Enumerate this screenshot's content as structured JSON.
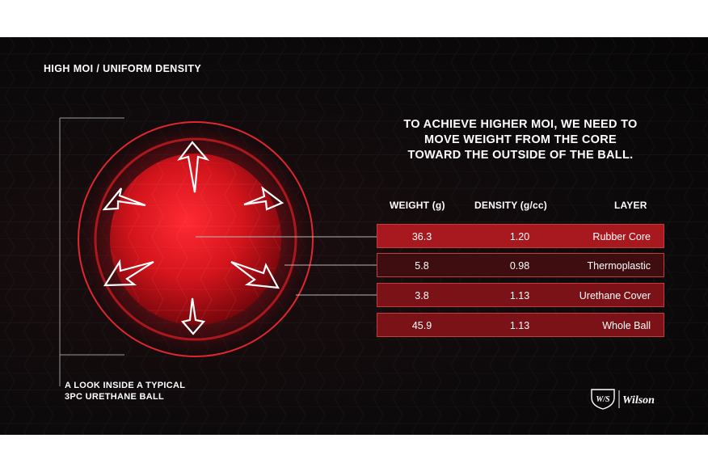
{
  "header": {
    "title": "HIGH MOI / UNIFORM DENSITY"
  },
  "headline": {
    "line1": "TO ACHIEVE HIGHER MOI, WE NEED TO",
    "line2": "MOVE WEIGHT FROM THE CORE",
    "line3": "TOWARD THE OUTSIDE OF THE BALL."
  },
  "table": {
    "headers": {
      "weight": "WEIGHT (g)",
      "density": "DENSITY (g/cc)",
      "layer": "LAYER"
    },
    "rows": [
      {
        "weight": "36.3",
        "density": "1.20",
        "layer": "Rubber Core",
        "color": "#a8191f"
      },
      {
        "weight": "5.8",
        "density": "0.98",
        "layer": "Thermoplastic",
        "color": "#3e0d10"
      },
      {
        "weight": "3.8",
        "density": "1.13",
        "layer": "Urethane Cover",
        "color": "#7a1217"
      },
      {
        "weight": "45.9",
        "density": "1.13",
        "layer": "Whole Ball",
        "color": "#7a1217"
      }
    ]
  },
  "caption": {
    "line1": "A LOOK INSIDE A TYPICAL",
    "line2": "3PC URETHANE BALL"
  },
  "logo": {
    "monogram": "W/S",
    "brand": "Wilson"
  },
  "colors": {
    "accent": "#d9232b",
    "border": "#c93a3f",
    "background": "#0d0a0b"
  }
}
